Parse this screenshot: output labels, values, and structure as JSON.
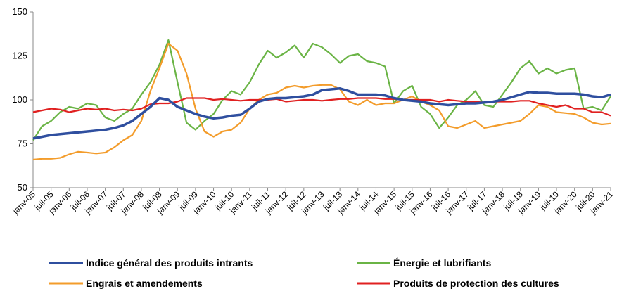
{
  "chart_data": {
    "type": "line",
    "categories": [
      "janv-05",
      null,
      "juil-05",
      null,
      "janv-06",
      null,
      "juil-06",
      null,
      "janv-07",
      null,
      "juil-07",
      null,
      "janv-08",
      null,
      "juil-08",
      null,
      "janv-09",
      null,
      "juil-09",
      null,
      "janv-10",
      null,
      "juil-10",
      null,
      "janv-11",
      null,
      "juil-11",
      null,
      "janv-12",
      null,
      "juil-12",
      null,
      "janv-13",
      null,
      "juil-13",
      null,
      "janv-14",
      null,
      "juil-14",
      null,
      "janv-15",
      null,
      "juil-15",
      null,
      "janv-16",
      null,
      "juil-16",
      null,
      "janv-17",
      null,
      "juil-17",
      null,
      "janv-18",
      null,
      "juil-18",
      null,
      "janv-19",
      null,
      "juil-19",
      null,
      "janv-20",
      null,
      "juil-20",
      null,
      "janv-21"
    ],
    "series": [
      {
        "name": "Indice général des produits intrants",
        "color": "#2f4f9f",
        "values": [
          78,
          79,
          80,
          80.5,
          81,
          81.5,
          82,
          82.5,
          83,
          84,
          85.5,
          88,
          92,
          96,
          101,
          100,
          96,
          94,
          92,
          90.5,
          89.5,
          90,
          91,
          91.5,
          95,
          99,
          100.5,
          101,
          101,
          101.5,
          102,
          103,
          105.5,
          106,
          106.5,
          105,
          103,
          103,
          103,
          102.5,
          101,
          100,
          99.5,
          99,
          98,
          97.5,
          97,
          97.5,
          98,
          98,
          98.5,
          99,
          100,
          101.5,
          103,
          104.5,
          104,
          104,
          103.5,
          103.5,
          103.5,
          103,
          102,
          101.5,
          103
        ]
      },
      {
        "name": "Énergie et lubrifiants",
        "color": "#6ab445",
        "values": [
          77,
          85,
          88,
          93,
          96,
          95,
          98,
          97,
          90,
          88,
          92,
          95,
          103,
          110,
          120,
          134,
          110,
          87,
          83,
          88,
          92,
          100,
          105,
          103,
          110,
          120,
          128,
          124,
          127,
          131,
          124,
          132,
          130,
          126,
          121,
          125,
          126,
          122,
          121,
          119,
          98,
          105,
          108,
          96,
          92,
          84,
          90,
          97,
          100,
          105,
          97,
          96,
          103,
          110,
          118,
          122,
          115,
          118,
          115,
          117,
          118,
          95,
          96,
          94,
          102
        ]
      },
      {
        "name": "Engrais et amendements",
        "color": "#f39c2b",
        "values": [
          66,
          66.5,
          66.5,
          67,
          69,
          70.5,
          70,
          69.5,
          70,
          73,
          77,
          80,
          88,
          105,
          118,
          132,
          128,
          115,
          95,
          82,
          79,
          82,
          83,
          87,
          95,
          100,
          103,
          104,
          107,
          108,
          107,
          108,
          108.5,
          108.5,
          106,
          99,
          97,
          100,
          97,
          98,
          98,
          100,
          102,
          99,
          97,
          94,
          85,
          84,
          86,
          88,
          84,
          85,
          86,
          87,
          88,
          92,
          97,
          96,
          93,
          92.5,
          92,
          90,
          87,
          86,
          86.5
        ]
      },
      {
        "name": "Produits de protection des cultures",
        "color": "#e02020",
        "values": [
          93,
          94,
          95,
          94.5,
          93,
          94,
          95,
          94.5,
          95,
          94,
          94.5,
          94,
          95,
          97.5,
          98,
          98,
          99,
          101,
          101,
          101,
          100,
          100.5,
          100,
          99.5,
          100,
          100,
          100,
          100.5,
          99,
          99.5,
          100,
          100,
          99.5,
          100,
          100.5,
          100.5,
          101,
          101,
          101,
          100.5,
          100.5,
          100,
          100,
          100,
          100,
          99,
          100,
          99.5,
          99,
          99,
          98.5,
          99,
          99,
          99,
          99.5,
          99.5,
          98,
          97,
          96,
          97,
          95,
          95,
          93,
          93,
          91
        ]
      }
    ],
    "ylim": [
      50,
      150
    ],
    "yticks": [
      50,
      75,
      100,
      125,
      150
    ],
    "grid": false,
    "legend": "bottom"
  }
}
